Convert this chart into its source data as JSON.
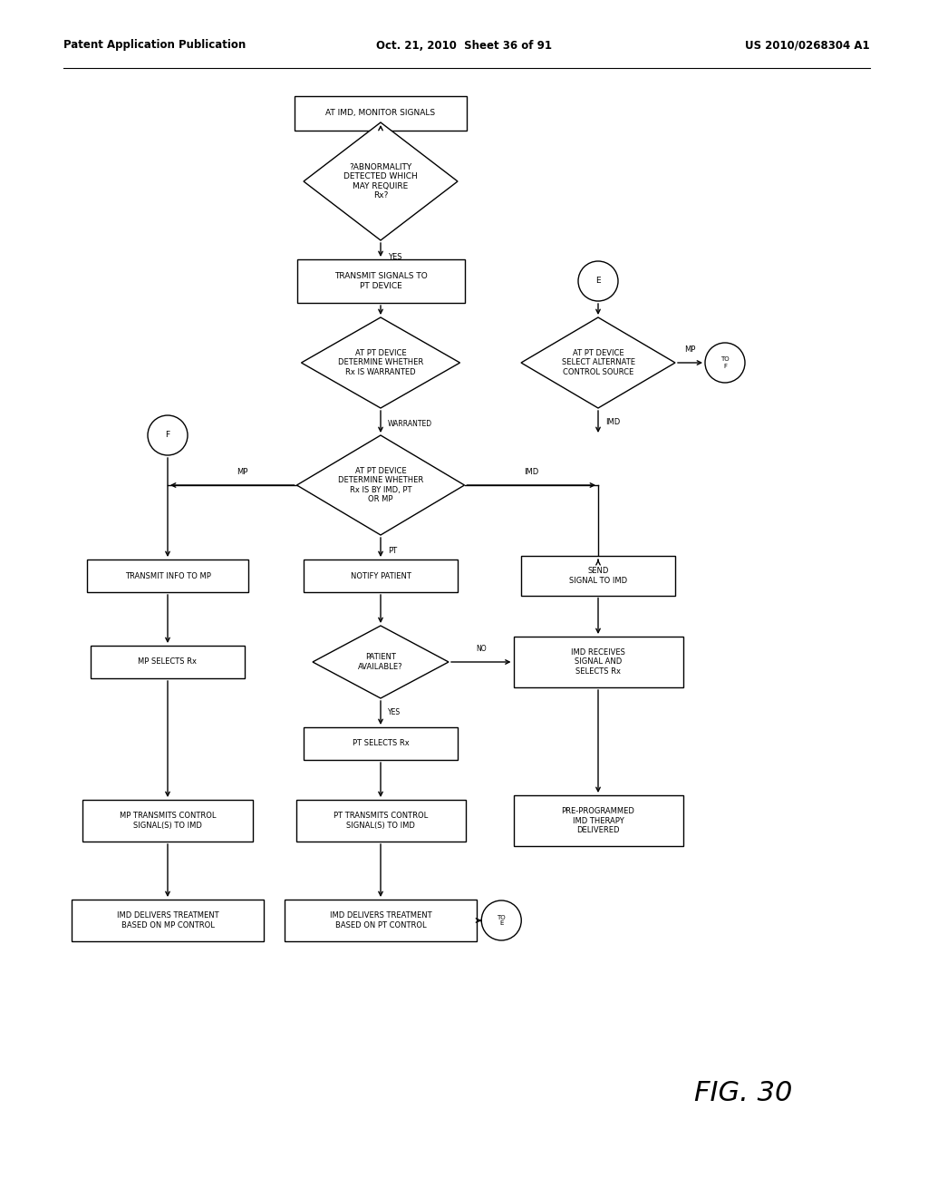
{
  "title_left": "Patent Application Publication",
  "title_center": "Oct. 21, 2010  Sheet 36 of 91",
  "title_right": "US 2010/0268304 A1",
  "fig_label": "FIG. 30",
  "background_color": "#ffffff",
  "line_color": "#000000",
  "text_color": "#000000",
  "font_size": 6.5,
  "header_font_size": 8.5,
  "lw": 1.0
}
